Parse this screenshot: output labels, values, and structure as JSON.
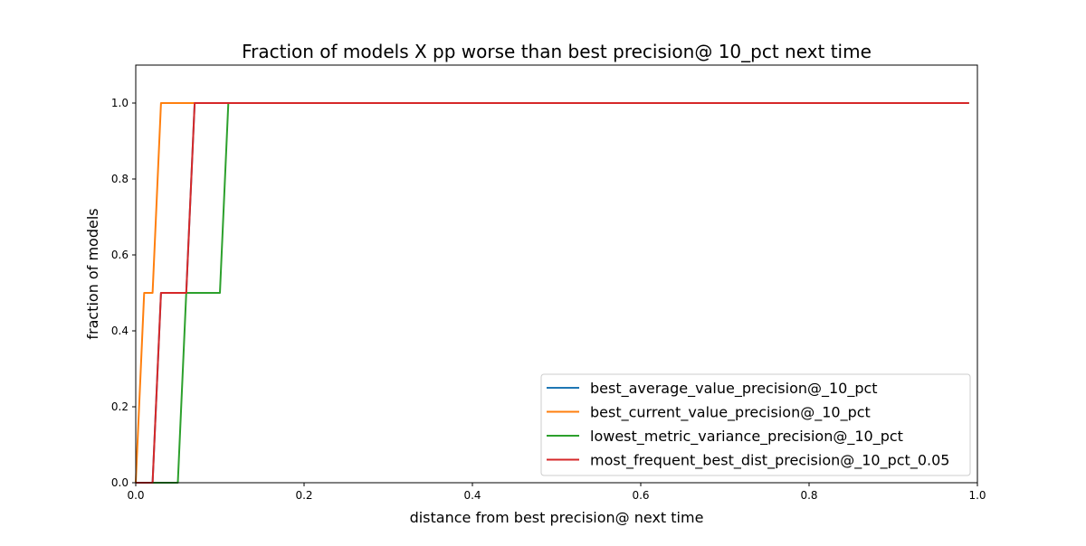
{
  "chart_data": {
    "type": "line",
    "title": "Fraction of models X pp worse than best precision@ 10_pct next time",
    "xlabel": "distance from best precision@ next time",
    "ylabel": "fraction of models",
    "xlim": [
      0.0,
      1.0
    ],
    "ylim": [
      0.0,
      1.1
    ],
    "xticks": [
      0.0,
      0.2,
      0.4,
      0.6,
      0.8,
      1.0
    ],
    "xtick_labels": [
      "0.0",
      "0.2",
      "0.4",
      "0.6",
      "0.8",
      "1.0"
    ],
    "yticks": [
      0.0,
      0.2,
      0.4,
      0.6,
      0.8,
      1.0
    ],
    "ytick_labels": [
      "0.0",
      "0.2",
      "0.4",
      "0.6",
      "0.8",
      "1.0"
    ],
    "grid": false,
    "legend_position": "lower-right",
    "series": [
      {
        "name": "best_average_value_precision@_10_pct",
        "color": "#1f77b4",
        "x": [
          0.0,
          0.01,
          0.02,
          0.03,
          0.06,
          0.07,
          0.99
        ],
        "y": [
          0.0,
          0.0,
          0.0,
          0.5,
          0.5,
          1.0,
          1.0
        ]
      },
      {
        "name": "best_current_value_precision@_10_pct",
        "color": "#ff7f0e",
        "x": [
          0.0,
          0.01,
          0.02,
          0.03,
          0.99
        ],
        "y": [
          0.0,
          0.5,
          0.5,
          1.0,
          1.0
        ]
      },
      {
        "name": "lowest_metric_variance_precision@_10_pct",
        "color": "#2ca02c",
        "x": [
          0.0,
          0.05,
          0.06,
          0.1,
          0.11,
          0.99
        ],
        "y": [
          0.0,
          0.0,
          0.5,
          0.5,
          1.0,
          1.0
        ]
      },
      {
        "name": "most_frequent_best_dist_precision@_10_pct_0.05",
        "color": "#d62728",
        "x": [
          0.0,
          0.02,
          0.03,
          0.06,
          0.07,
          0.99
        ],
        "y": [
          0.0,
          0.0,
          0.5,
          0.5,
          1.0,
          1.0
        ]
      }
    ]
  }
}
